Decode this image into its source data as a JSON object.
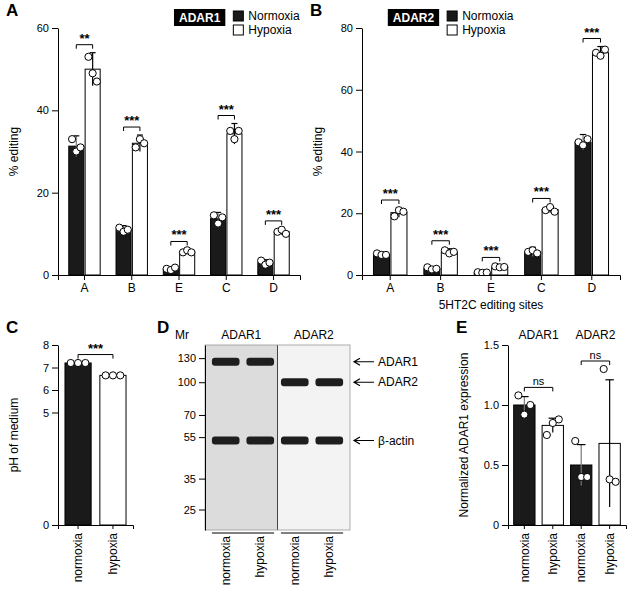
{
  "chart_data": [
    {
      "panel": "A",
      "type": "bar",
      "title": "ADAR1",
      "y_label": "% editing",
      "categories": [
        "A",
        "B",
        "E",
        "C",
        "D"
      ],
      "ylim": [
        0,
        60
      ],
      "yticks": [
        0,
        20,
        40,
        60
      ],
      "legend": "top right",
      "series": [
        {
          "name": "Normoxia",
          "color": "#1a1a1a",
          "values": [
            31.3,
            11,
            1.5,
            13.7,
            3
          ],
          "errors": [
            2.5,
            1,
            0.5,
            1.5,
            0.7
          ],
          "points": [
            [
              33,
              30,
              31
            ],
            [
              11.5,
              10.5,
              11
            ],
            [
              1.5,
              1.2,
              1.8
            ],
            [
              14.5,
              12.5,
              14
            ],
            [
              3.5,
              2.5,
              3
            ]
          ]
        },
        {
          "name": "Hypoxia",
          "color": "#ffffff",
          "values": [
            50,
            32,
            5.7,
            34.3,
            10.5
          ],
          "errors": [
            4,
            2,
            0.5,
            2.5,
            0.7
          ],
          "points": [
            [
              53,
              49,
              47
            ],
            [
              31,
              33,
              32
            ],
            [
              5.5,
              6,
              5.5
            ],
            [
              35,
              33,
              35
            ],
            [
              10.5,
              11,
              10
            ]
          ]
        }
      ],
      "significance": [
        "**",
        "***",
        "***",
        "***",
        "***"
      ]
    },
    {
      "panel": "B",
      "type": "bar",
      "title": "ADAR2",
      "y_label": "% editing",
      "x_label": "5HT2C editing sites",
      "categories": [
        "A",
        "B",
        "E",
        "C",
        "D"
      ],
      "ylim": [
        0,
        80
      ],
      "yticks": [
        0,
        20,
        40,
        60,
        80
      ],
      "legend": "top left",
      "series": [
        {
          "name": "Normoxia",
          "color": "#1a1a1a",
          "values": [
            6.7,
            2.1,
            0.8,
            7.5,
            43
          ],
          "errors": [
            0.8,
            0.6,
            0.3,
            1.5,
            2.5
          ],
          "points": [
            [
              7,
              6.5,
              6.5
            ],
            [
              2.5,
              1.8,
              2
            ],
            [
              0.9,
              0.7,
              0.8
            ],
            [
              7.5,
              8,
              7
            ],
            [
              43,
              42,
              44
            ]
          ]
        },
        {
          "name": "Hypoxia",
          "color": "#ffffff",
          "values": [
            20.2,
            7.5,
            2.6,
            21.2,
            72
          ],
          "errors": [
            1.5,
            1,
            0.5,
            1,
            2
          ],
          "points": [
            [
              19,
              21,
              20.5
            ],
            [
              8,
              7,
              7.5
            ],
            [
              2.8,
              2.5,
              2.6
            ],
            [
              21,
              22,
              20.5
            ],
            [
              72,
              71,
              73
            ]
          ]
        }
      ],
      "significance": [
        "***",
        "***",
        "***",
        "***",
        "***"
      ]
    },
    {
      "panel": "C",
      "type": "bar",
      "y_label": "pH of medium",
      "categories": [
        "normoxia",
        "hypoxia"
      ],
      "ylim": [
        0,
        8
      ],
      "yticks": [
        0,
        5,
        6,
        7,
        8
      ],
      "values": [
        7.2,
        6.65
      ],
      "errors": [
        0.02,
        0.02
      ],
      "points": [
        [
          7.2,
          7.2,
          7.2
        ],
        [
          6.65,
          6.65,
          6.65
        ]
      ],
      "colors": [
        "#1a1a1a",
        "#ffffff"
      ],
      "significance": [
        "***"
      ]
    },
    {
      "panel": "D",
      "type": "blot",
      "y_label": "Mr",
      "log": "y",
      "ylim": [
        20,
        150
      ],
      "yticks": [
        130,
        100,
        70,
        55,
        35,
        25
      ],
      "groups": [
        "ADAR1",
        "ADAR2"
      ],
      "lanes": [
        "normoxia",
        "hypoxia",
        "normoxia",
        "hypoxia"
      ],
      "bands": [
        {
          "label": "ADAR1",
          "mr": 125,
          "lanes": [
            0,
            1
          ]
        },
        {
          "label": "ADAR2",
          "mr": 100,
          "lanes": [
            2,
            3
          ]
        },
        {
          "label": "β-actin",
          "mr": 53,
          "lanes": [
            0,
            1,
            2,
            3
          ]
        }
      ]
    },
    {
      "panel": "E",
      "type": "bar",
      "y_label": "Normalized ADAR1 expression",
      "categories": [
        "normoxia",
        "hypoxia",
        "normoxia",
        "hypoxia"
      ],
      "groups": [
        "ADAR1",
        "ADAR2"
      ],
      "ylim": [
        0,
        1.5
      ],
      "yticks": [
        0,
        0.5,
        {
          "value": 1,
          "label": "1.0"
        },
        1.5
      ],
      "values": [
        1.0,
        0.83,
        0.5,
        0.68
      ],
      "errors": [
        0.07,
        0.06,
        0.17,
        0.53
      ],
      "points": [
        [
          1.08,
          0.92,
          1.0
        ],
        [
          0.75,
          0.85,
          0.88
        ],
        [
          0.7,
          0.4,
          0.4
        ],
        [
          1.3,
          0.38,
          0.36
        ]
      ],
      "colors": [
        "#1a1a1a",
        "#ffffff",
        "#1a1a1a",
        "#ffffff"
      ],
      "significance": [
        "ns",
        "ns"
      ]
    }
  ]
}
